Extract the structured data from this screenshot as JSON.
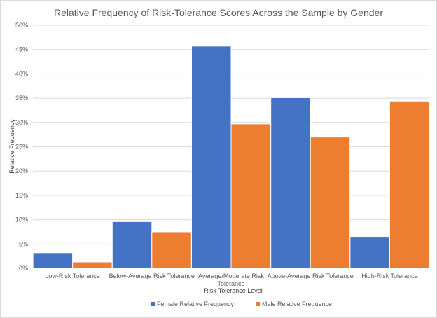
{
  "chart_data": {
    "type": "bar",
    "title": "Relative Frequency of Risk-Tolerance Scores Across the Sample by Gender",
    "xlabel": "Risk-Tolerance Level",
    "ylabel": "Relative Frequency",
    "categories": [
      "Low-Risk Tolerance",
      "Below-Average Risk Tolerance",
      "Average/Moderate Risk Tolerance",
      "Above-Average Risk Tolerance",
      "High-Risk Tolerance"
    ],
    "category_lines": [
      [
        "Low-Risk Tolerance"
      ],
      [
        "Below-Average Risk Tolerance"
      ],
      [
        "Average/Moderate Risk",
        "Tolerance"
      ],
      [
        "Above-Average Risk Tolerance"
      ],
      [
        "High-Risk Tolerance"
      ]
    ],
    "series": [
      {
        "name": "Female Relative Frequency",
        "color": "#4472C4",
        "values": [
          3.2,
          9.6,
          45.7,
          35.1,
          6.4
        ]
      },
      {
        "name": "Male Relative Frequence",
        "color": "#ED7D31",
        "values": [
          1.3,
          7.5,
          29.7,
          27.0,
          34.4
        ]
      }
    ],
    "ylim": [
      0,
      50
    ],
    "yticks": [
      "0%",
      "5%",
      "10%",
      "15%",
      "20%",
      "25%",
      "30%",
      "35%",
      "40%",
      "45%",
      "50%"
    ],
    "grid": true,
    "legend_position": "bottom"
  }
}
